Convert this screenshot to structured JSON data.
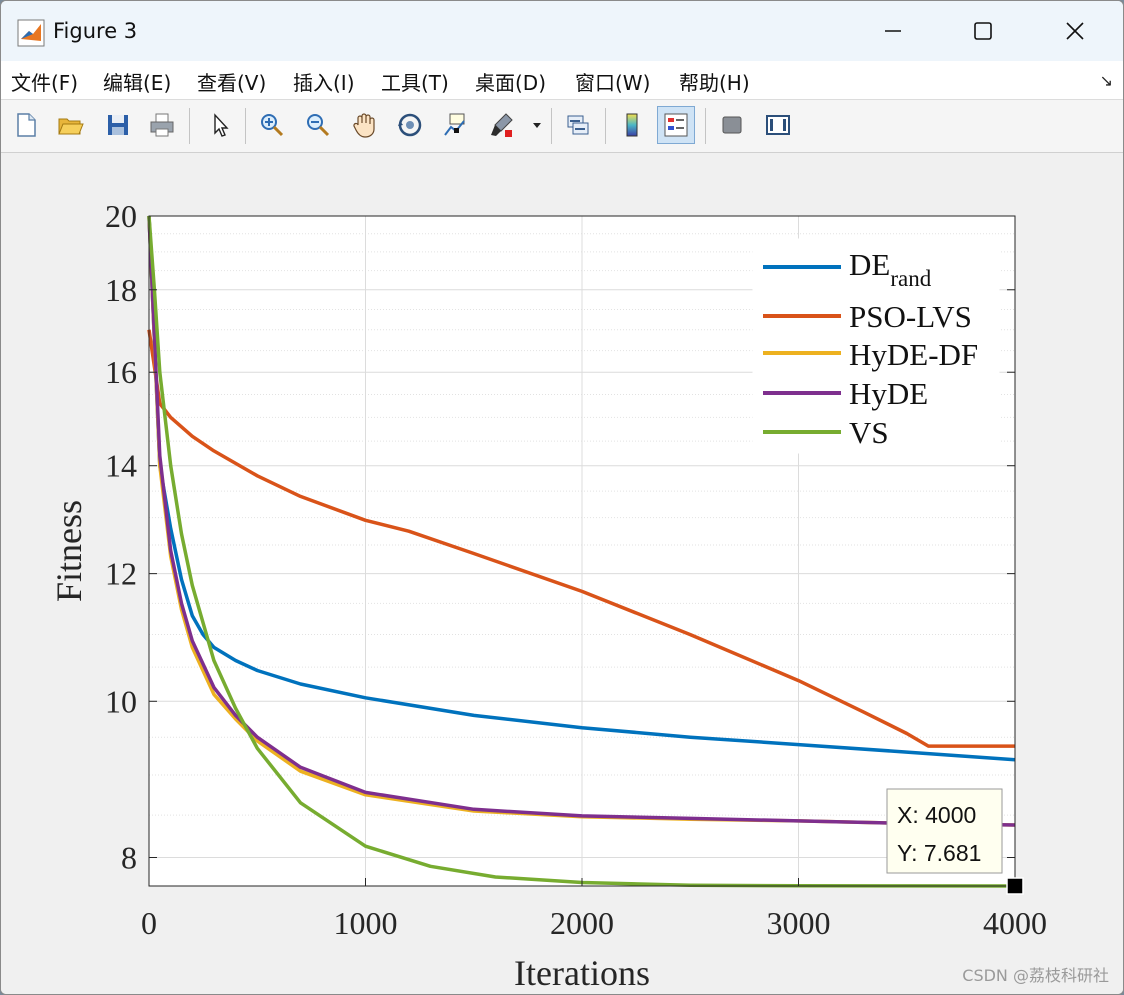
{
  "window": {
    "title": "Figure 3",
    "controls": [
      "minimize",
      "maximize",
      "close"
    ]
  },
  "menu": {
    "items": [
      "文件(F)",
      "编辑(E)",
      "查看(V)",
      "插入(I)",
      "工具(T)",
      "桌面(D)",
      "窗口(W)",
      "帮助(H)"
    ],
    "dock_icon": "↘"
  },
  "toolbar": {
    "buttons": [
      {
        "name": "new-figure-icon",
        "active": false
      },
      {
        "name": "open-file-icon",
        "active": false
      },
      {
        "name": "save-icon",
        "active": false
      },
      {
        "name": "print-icon",
        "active": false
      },
      {
        "name": "pointer-icon",
        "active": false
      },
      {
        "name": "zoom-in-icon",
        "active": false
      },
      {
        "name": "zoom-out-icon",
        "active": false
      },
      {
        "name": "pan-hand-icon",
        "active": false
      },
      {
        "name": "rotate-3d-icon",
        "active": false
      },
      {
        "name": "data-cursor-icon",
        "active": false
      },
      {
        "name": "brush-icon",
        "active": false
      },
      {
        "name": "link-plot-icon",
        "active": false
      },
      {
        "name": "colorbar-icon",
        "active": false
      },
      {
        "name": "legend-icon",
        "active": true
      },
      {
        "name": "hide-plot-tools-icon",
        "active": false
      },
      {
        "name": "show-plot-tools-icon",
        "active": false
      }
    ]
  },
  "chart_data": {
    "type": "line",
    "xlabel": "Iterations",
    "ylabel": "Fitness",
    "xlim": [
      0,
      4000
    ],
    "ylim": [
      7.681,
      20
    ],
    "y_scale": "log",
    "xticks": [
      "0",
      "1000",
      "2000",
      "3000",
      "4000"
    ],
    "yticks": [
      "8",
      "10",
      "12",
      "14",
      "16",
      "18",
      "20"
    ],
    "grid": true,
    "minor_grid": true,
    "legend_position": "top-right",
    "series": [
      {
        "name": "DE",
        "name_subscript": "rand",
        "color": "#0072BD",
        "x": [
          0,
          50,
          100,
          150,
          200,
          250,
          300,
          400,
          500,
          700,
          1000,
          1500,
          2000,
          2500,
          3000,
          3500,
          4000
        ],
        "y": [
          20,
          14.0,
          12.8,
          11.9,
          11.3,
          11.0,
          10.8,
          10.6,
          10.45,
          10.25,
          10.05,
          9.8,
          9.63,
          9.5,
          9.4,
          9.3,
          9.2
        ]
      },
      {
        "name": "PSO-LVS",
        "color": "#D95319",
        "x": [
          0,
          50,
          100,
          200,
          300,
          500,
          700,
          1000,
          1200,
          1500,
          2000,
          2500,
          3000,
          3300,
          3500,
          3600,
          4000
        ],
        "y": [
          17.0,
          15.3,
          15.0,
          14.6,
          14.3,
          13.8,
          13.4,
          12.95,
          12.75,
          12.35,
          11.7,
          11.0,
          10.3,
          9.85,
          9.55,
          9.38,
          9.38
        ]
      },
      {
        "name": "HyDE-DF",
        "color": "#EDB120",
        "x": [
          0,
          50,
          100,
          150,
          200,
          300,
          400,
          500,
          700,
          1000,
          1500,
          2000,
          2500,
          3000,
          3500,
          4000
        ],
        "y": [
          20,
          14.0,
          12.3,
          11.4,
          10.8,
          10.1,
          9.75,
          9.45,
          9.05,
          8.75,
          8.55,
          8.48,
          8.45,
          8.43,
          8.4,
          8.38
        ]
      },
      {
        "name": "HyDE",
        "color": "#7E2F8E",
        "x": [
          0,
          50,
          100,
          150,
          200,
          300,
          400,
          500,
          700,
          1000,
          1500,
          2000,
          2500,
          3000,
          3500,
          4000
        ],
        "y": [
          20,
          14.2,
          12.4,
          11.5,
          10.9,
          10.2,
          9.8,
          9.5,
          9.1,
          8.78,
          8.57,
          8.49,
          8.46,
          8.43,
          8.4,
          8.38
        ]
      },
      {
        "name": "VS",
        "color": "#77AC30",
        "x": [
          0,
          25,
          50,
          100,
          150,
          200,
          300,
          400,
          500,
          700,
          1000,
          1300,
          1600,
          2000,
          2500,
          3000,
          3500,
          4000
        ],
        "y": [
          20,
          18.0,
          16.0,
          14.0,
          12.7,
          11.8,
          10.6,
          9.9,
          9.35,
          8.65,
          8.13,
          7.9,
          7.78,
          7.72,
          7.69,
          7.683,
          7.682,
          7.681
        ]
      }
    ],
    "datatip": {
      "x_label": "X: 4000",
      "y_label": "Y: 7.681",
      "x": 4000,
      "y": 7.681
    }
  },
  "watermark": "CSDN @荔枝科研社"
}
